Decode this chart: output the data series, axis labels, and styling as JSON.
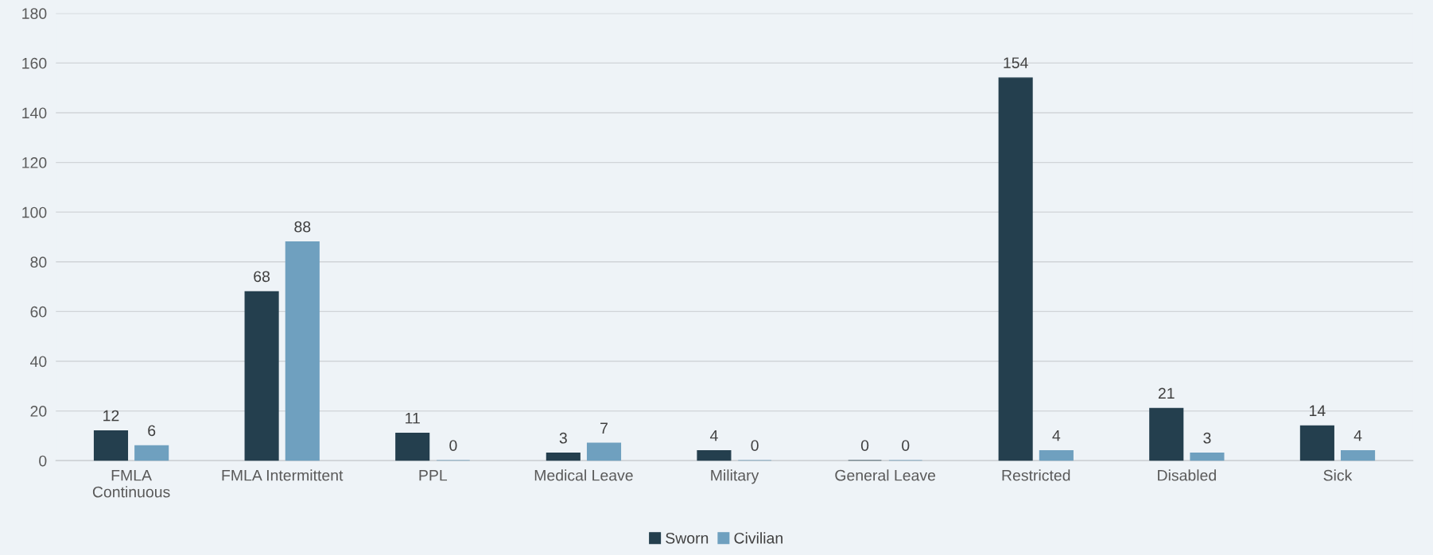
{
  "chart_data": {
    "type": "bar",
    "categories": [
      "FMLA\nContinuous",
      "FMLA Intermittent",
      "PPL",
      "Medical Leave",
      "Military",
      "General Leave",
      "Restricted",
      "Disabled",
      "Sick"
    ],
    "series": [
      {
        "name": "Sworn",
        "color": "#243f4e",
        "values": [
          12,
          68,
          11,
          3,
          4,
          0,
          154,
          21,
          14
        ]
      },
      {
        "name": "Civilian",
        "color": "#6fa0bf",
        "values": [
          6,
          88,
          0,
          7,
          0,
          0,
          4,
          3,
          4
        ]
      }
    ],
    "ylim": [
      0,
      180
    ],
    "yticks": [
      0,
      20,
      40,
      60,
      80,
      100,
      120,
      140,
      160,
      180
    ],
    "grid": "y",
    "legend": "bottom",
    "data_labels": true
  }
}
